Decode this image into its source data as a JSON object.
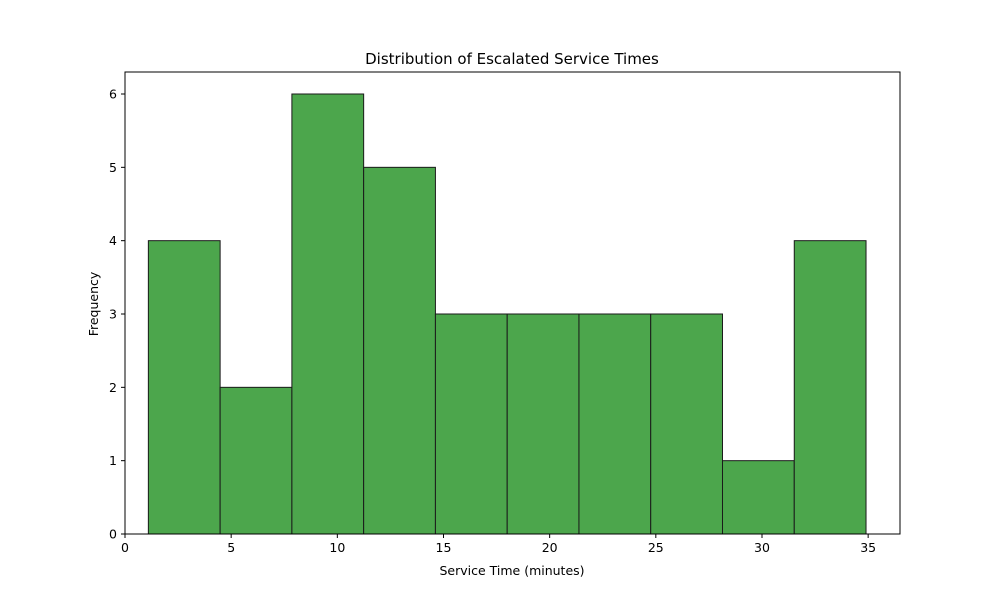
{
  "chart_data": {
    "type": "bar",
    "title": "Distribution of Escalated Service Times",
    "xlabel": "Service Time (minutes)",
    "ylabel": "Frequency",
    "xlim": [
      0,
      36.5
    ],
    "ylim": [
      0,
      6.3
    ],
    "xticks": [
      0,
      5,
      10,
      15,
      20,
      25,
      30,
      35
    ],
    "yticks": [
      0,
      1,
      2,
      3,
      4,
      5,
      6
    ],
    "bin_edges": [
      1.1,
      4.48,
      7.86,
      11.24,
      14.62,
      18.0,
      21.38,
      24.76,
      28.14,
      31.52,
      34.9
    ],
    "values": [
      4,
      2,
      6,
      5,
      3,
      3,
      3,
      3,
      1,
      4
    ],
    "bar_color": "#4ca64c",
    "edge_color": "#1a1a1a",
    "grid": false
  }
}
